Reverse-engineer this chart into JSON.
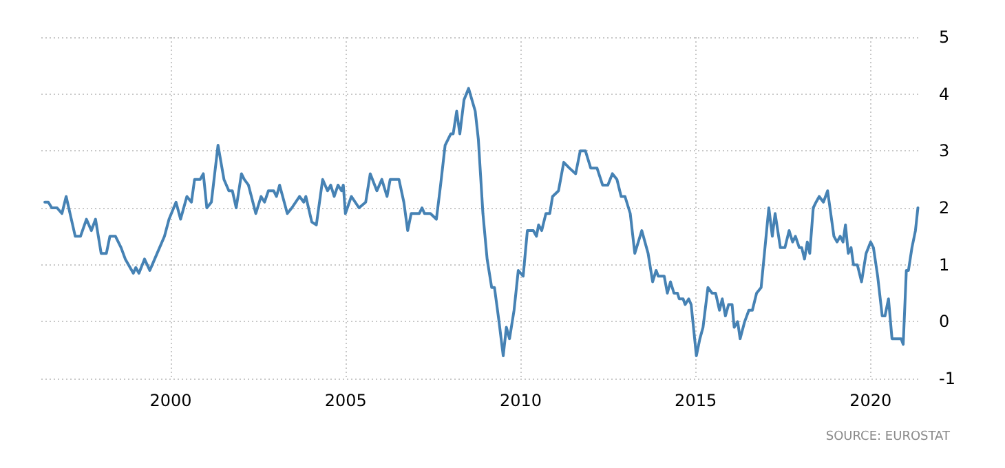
{
  "chart_data": {
    "type": "line",
    "annotations": [
      "SOURCE: EUROSTAT"
    ],
    "x": [
      1996.4,
      1996.5,
      1996.6,
      1996.75,
      1996.89,
      1997.01,
      1997.27,
      1997.42,
      1997.59,
      1997.73,
      1997.85,
      1998.01,
      1998.16,
      1998.26,
      1998.42,
      1998.58,
      1998.7,
      1998.93,
      1999.0,
      1999.09,
      1999.25,
      1999.4,
      1999.54,
      1999.82,
      1999.95,
      2000.15,
      2000.28,
      2000.46,
      2000.59,
      2000.68,
      2000.84,
      2000.93,
      2001.03,
      2001.16,
      2001.35,
      2001.52,
      2001.66,
      2001.76,
      2001.87,
      2002.02,
      2002.1,
      2002.22,
      2002.43,
      2002.58,
      2002.68,
      2002.79,
      2002.94,
      2003.02,
      2003.11,
      2003.33,
      2003.46,
      2003.68,
      2003.8,
      2003.86,
      2004.03,
      2004.16,
      2004.34,
      2004.48,
      2004.57,
      2004.67,
      2004.78,
      2004.88,
      2004.93,
      2004.99,
      2005.16,
      2005.38,
      2005.57,
      2005.7,
      2005.89,
      2006.03,
      2006.18,
      2006.27,
      2006.52,
      2006.66,
      2006.77,
      2006.87,
      2007.1,
      2007.18,
      2007.25,
      2007.42,
      2007.59,
      2007.71,
      2007.84,
      2008.0,
      2008.07,
      2008.17,
      2008.26,
      2008.38,
      2008.51,
      2008.7,
      2008.79,
      2008.92,
      2009.04,
      2009.17,
      2009.25,
      2009.38,
      2009.5,
      2009.59,
      2009.68,
      2009.81,
      2009.93,
      2010.07,
      2010.19,
      2010.3,
      2010.36,
      2010.45,
      2010.51,
      2010.6,
      2010.72,
      2010.83,
      2010.91,
      2011.08,
      2011.23,
      2011.39,
      2011.57,
      2011.7,
      2011.85,
      2012.0,
      2012.18,
      2012.34,
      2012.49,
      2012.62,
      2012.75,
      2012.87,
      2012.98,
      2013.13,
      2013.26,
      2013.46,
      2013.64,
      2013.77,
      2013.87,
      2013.93,
      2014.1,
      2014.19,
      2014.28,
      2014.38,
      2014.48,
      2014.53,
      2014.64,
      2014.7,
      2014.8,
      2014.87,
      2015.02,
      2015.12,
      2015.21,
      2015.35,
      2015.47,
      2015.57,
      2015.68,
      2015.76,
      2015.85,
      2015.94,
      2016.04,
      2016.1,
      2016.2,
      2016.27,
      2016.4,
      2016.52,
      2016.62,
      2016.74,
      2016.87,
      2017.09,
      2017.19,
      2017.27,
      2017.42,
      2017.55,
      2017.67,
      2017.77,
      2017.85,
      2017.96,
      2018.03,
      2018.11,
      2018.19,
      2018.26,
      2018.36,
      2018.44,
      2018.53,
      2018.65,
      2018.77,
      2018.95,
      2019.04,
      2019.13,
      2019.21,
      2019.28,
      2019.36,
      2019.44,
      2019.51,
      2019.62,
      2019.74,
      2019.87,
      2020.0,
      2020.08,
      2020.2,
      2020.33,
      2020.41,
      2020.51,
      2020.61,
      2020.77,
      2020.87,
      2020.93,
      2021.02,
      2021.08,
      2021.18,
      2021.28,
      2021.35
    ],
    "series": [
      {
        "color": "#4682b4",
        "values": [
          2.1,
          2.1,
          2.0,
          2.0,
          1.9,
          2.2,
          1.5,
          1.5,
          1.8,
          1.6,
          1.8,
          1.2,
          1.2,
          1.5,
          1.5,
          1.3,
          1.1,
          0.85,
          0.95,
          0.85,
          1.1,
          0.9,
          1.1,
          1.5,
          1.8,
          2.1,
          1.8,
          2.2,
          2.1,
          2.5,
          2.5,
          2.6,
          2.0,
          2.1,
          3.1,
          2.5,
          2.3,
          2.3,
          2.0,
          2.6,
          2.5,
          2.4,
          1.9,
          2.2,
          2.1,
          2.3,
          2.3,
          2.2,
          2.4,
          1.9,
          2.0,
          2.2,
          2.1,
          2.2,
          1.75,
          1.7,
          2.5,
          2.3,
          2.4,
          2.2,
          2.4,
          2.3,
          2.4,
          1.9,
          2.2,
          2.0,
          2.1,
          2.6,
          2.3,
          2.5,
          2.2,
          2.5,
          2.5,
          2.1,
          1.6,
          1.9,
          1.9,
          2.0,
          1.9,
          1.9,
          1.8,
          2.4,
          3.1,
          3.3,
          3.3,
          3.7,
          3.3,
          3.9,
          4.1,
          3.7,
          3.2,
          1.9,
          1.1,
          0.6,
          0.6,
          0.0,
          -0.6,
          -0.1,
          -0.3,
          0.2,
          0.9,
          0.8,
          1.6,
          1.6,
          1.6,
          1.5,
          1.7,
          1.6,
          1.9,
          1.9,
          2.2,
          2.3,
          2.8,
          2.7,
          2.6,
          3.0,
          3.0,
          2.7,
          2.7,
          2.4,
          2.4,
          2.6,
          2.5,
          2.2,
          2.2,
          1.9,
          1.2,
          1.6,
          1.2,
          0.7,
          0.9,
          0.8,
          0.8,
          0.5,
          0.7,
          0.5,
          0.5,
          0.4,
          0.4,
          0.3,
          0.4,
          0.3,
          -0.6,
          -0.3,
          -0.1,
          0.6,
          0.5,
          0.5,
          0.2,
          0.4,
          0.1,
          0.3,
          0.3,
          -0.1,
          0.0,
          -0.3,
          0.0,
          0.2,
          0.2,
          0.5,
          0.6,
          2.0,
          1.5,
          1.9,
          1.3,
          1.3,
          1.6,
          1.4,
          1.5,
          1.3,
          1.3,
          1.1,
          1.4,
          1.2,
          2.0,
          2.1,
          2.2,
          2.1,
          2.3,
          1.5,
          1.4,
          1.5,
          1.4,
          1.7,
          1.2,
          1.3,
          1.0,
          1.0,
          0.7,
          1.2,
          1.4,
          1.3,
          0.8,
          0.1,
          0.1,
          0.4,
          -0.3,
          -0.3,
          -0.3,
          -0.4,
          0.9,
          0.9,
          1.3,
          1.6,
          2.0
        ]
      }
    ],
    "xlim": [
      1996.3,
      2021.4
    ],
    "xticks": [
      2000,
      2005,
      2010,
      2015,
      2020
    ],
    "ylim": [
      -1,
      5
    ],
    "yticks": [
      -1,
      0,
      1,
      2,
      3,
      4,
      5
    ],
    "grid": true,
    "marker": "none",
    "line_style": "solid"
  }
}
